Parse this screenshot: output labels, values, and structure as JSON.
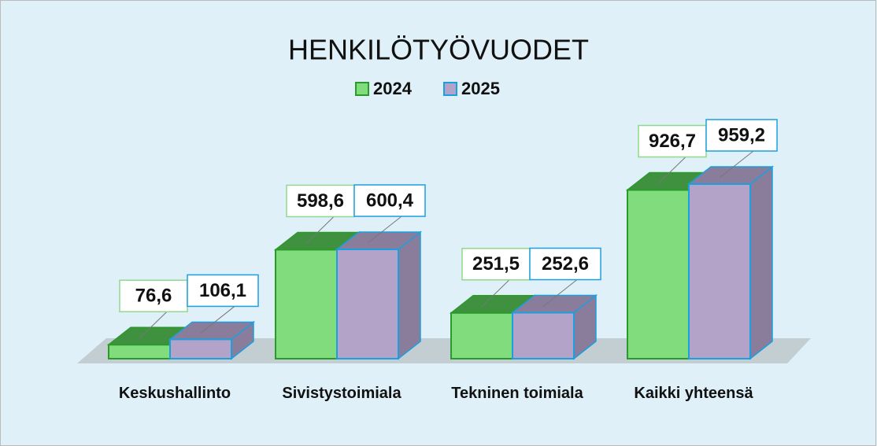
{
  "chart_data": {
    "type": "bar3d",
    "title": "HENKILÖTYÖVUODET",
    "categories": [
      "Keskushallinto",
      "Sivistystoimiala",
      "Tekninen toimiala",
      "Kaikki yhteensä"
    ],
    "series": [
      {
        "name": "2024",
        "color": "#80dc7c",
        "values": [
          76.6,
          598.6,
          251.5,
          926.7
        ],
        "value_labels": [
          "76,6",
          "598,6",
          "251,5",
          "926,7"
        ]
      },
      {
        "name": "2025",
        "color": "#b3a3c9",
        "values": [
          106.1,
          600.4,
          252.6,
          959.2
        ],
        "value_labels": [
          "106,1",
          "600,4",
          "252,6",
          "959,2"
        ]
      }
    ],
    "legend": "top"
  }
}
